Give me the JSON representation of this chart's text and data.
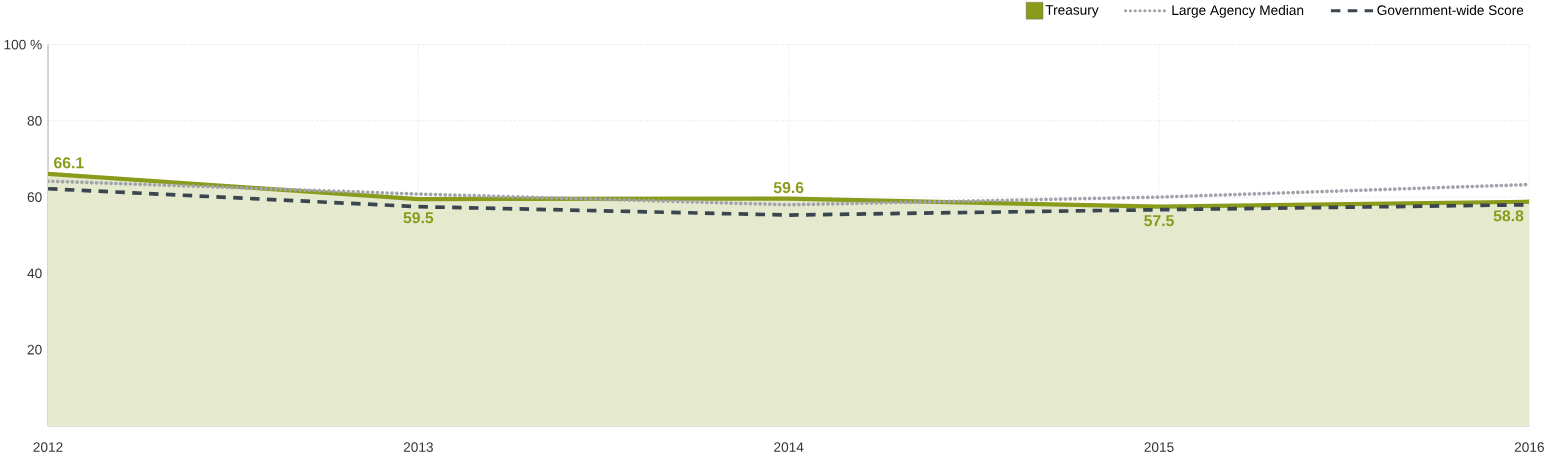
{
  "chart_data": {
    "type": "line",
    "x": [
      2012,
      2013,
      2014,
      2015,
      2016
    ],
    "xlim": [
      2012,
      2016
    ],
    "xticks": [
      2012,
      2013,
      2014,
      2015,
      2016
    ],
    "ylim": [
      0,
      100
    ],
    "yticks": [
      20,
      40,
      60,
      80,
      {
        "value": 100,
        "label": "100 %"
      }
    ],
    "grid": true,
    "legend": "top right",
    "series": [
      {
        "name": "Treasury",
        "type": "area",
        "color": "#8a9a1b",
        "values": [
          66.1,
          59.5,
          59.6,
          57.5,
          58.8
        ],
        "value_labels": [
          "66.1",
          "59.5",
          "59.6",
          "57.5",
          "58.8"
        ]
      },
      {
        "name": "Large Agency Median",
        "color": "#a0a4ab",
        "line_style": "dotted",
        "values": [
          64.2,
          60.8,
          58,
          60,
          63.3
        ]
      },
      {
        "name": "Government-wide Score",
        "color": "#3a4550",
        "line_style": "dashed",
        "values": [
          62.2,
          57.5,
          55.3,
          56.7,
          58
        ]
      }
    ]
  }
}
